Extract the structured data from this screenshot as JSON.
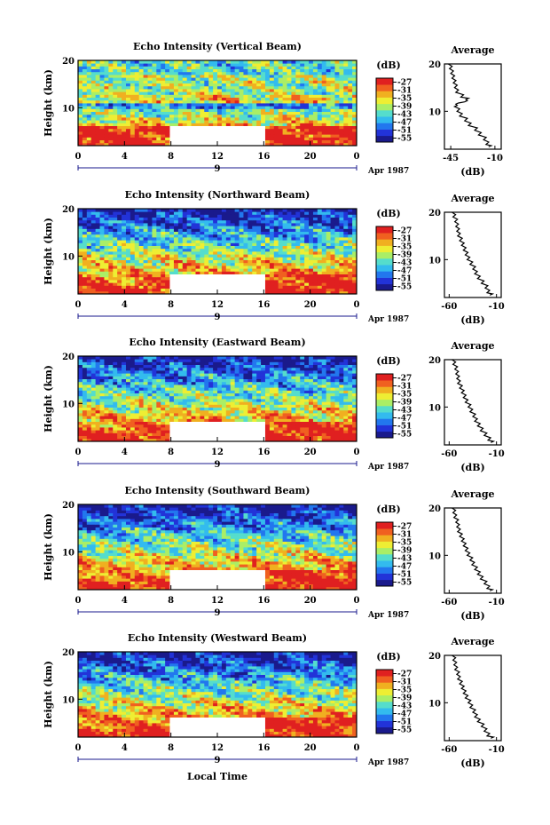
{
  "chart_data": {
    "type": "heatmap",
    "x_axis_label": "Local Time",
    "common": {
      "y_label": "Height (km)",
      "y_ticks": [
        "10",
        "20"
      ],
      "x_ticks": [
        "0",
        "4",
        "8",
        "12",
        "16",
        "20",
        "0"
      ],
      "xlim": [
        0,
        24
      ],
      "ylim": [
        2,
        20
      ],
      "date_day": "9",
      "date_month_year": "Apr 1987",
      "colorbar_unit": "(dB)",
      "colorbar_ticks": [
        "-27",
        "-31",
        "-35",
        "-39",
        "-43",
        "-47",
        "-51",
        "-55"
      ],
      "colorbar_range": [
        -57,
        -25
      ],
      "colorbar_colors": [
        "#1a1a8c",
        "#2233d8",
        "#2277ee",
        "#33bbee",
        "#55ddcc",
        "#aaee66",
        "#eeee33",
        "#f0b020",
        "#f06020",
        "#e02020"
      ],
      "average_title": "Average",
      "average_xlabel": "(dB)",
      "average_ylim": [
        2,
        20
      ],
      "average_yticks": [
        "10",
        "20"
      ],
      "no_data_region": {
        "x_start": 8,
        "x_end": 16,
        "y_start": 2,
        "y_end": 6
      }
    },
    "panels": [
      {
        "title": "Echo Intensity (Vertical Beam)",
        "avg_xlim": [
          -50,
          -5
        ],
        "avg_xticks": [
          "-45",
          "-10"
        ],
        "average_profile": {
          "height": [
            2.5,
            3,
            4,
            5,
            6,
            7,
            8,
            9,
            10,
            11,
            11.5,
            12,
            12.5,
            13,
            14,
            15,
            16,
            17,
            18,
            19,
            20
          ],
          "db": [
            -15,
            -17,
            -19,
            -23,
            -26,
            -31,
            -34,
            -38,
            -40,
            -42,
            -41,
            -34,
            -33,
            -37,
            -41,
            -42,
            -43,
            -44,
            -45,
            -46,
            -47
          ]
        }
      },
      {
        "title": "Echo Intensity (Northward Beam)",
        "avg_xlim": [
          -65,
          -5
        ],
        "avg_xticks": [
          "-60",
          "-10"
        ],
        "average_profile": {
          "height": [
            2.5,
            3,
            4,
            5,
            6,
            7,
            8,
            9,
            10,
            11,
            12,
            13,
            14,
            15,
            16,
            17,
            18,
            19,
            20
          ],
          "db": [
            -17,
            -20,
            -22,
            -26,
            -30,
            -33,
            -35,
            -38,
            -41,
            -43,
            -45,
            -47,
            -49,
            -51,
            -52,
            -53,
            -54,
            -56,
            -57
          ]
        }
      },
      {
        "title": "Echo Intensity (Eastward Beam)",
        "avg_xlim": [
          -65,
          -5
        ],
        "avg_xticks": [
          "-60",
          "-10"
        ],
        "average_profile": {
          "height": [
            2.5,
            3,
            4,
            5,
            6,
            7,
            8,
            9,
            10,
            11,
            12,
            13,
            14,
            15,
            16,
            17,
            18,
            19,
            20
          ],
          "db": [
            -16,
            -19,
            -23,
            -27,
            -30,
            -33,
            -35,
            -38,
            -40,
            -43,
            -45,
            -47,
            -49,
            -51,
            -52,
            -53,
            -54,
            -56,
            -57
          ]
        }
      },
      {
        "title": "Echo Intensity (Southward Beam)",
        "avg_xlim": [
          -65,
          -5
        ],
        "avg_xticks": [
          "-60",
          "-10"
        ],
        "average_profile": {
          "height": [
            2.5,
            3,
            4,
            5,
            6,
            7,
            8,
            9,
            10,
            11,
            12,
            13,
            14,
            15,
            16,
            17,
            18,
            19,
            20
          ],
          "db": [
            -17,
            -20,
            -23,
            -27,
            -30,
            -33,
            -36,
            -38,
            -41,
            -43,
            -45,
            -47,
            -49,
            -51,
            -52,
            -53,
            -55,
            -56,
            -57
          ]
        }
      },
      {
        "title": "Echo Intensity (Westward Beam)",
        "avg_xlim": [
          -65,
          -5
        ],
        "avg_xticks": [
          "-60",
          "-10"
        ],
        "average_profile": {
          "height": [
            2.5,
            3,
            4,
            5,
            6,
            7,
            8,
            9,
            10,
            11,
            12,
            13,
            14,
            15,
            16,
            17,
            18,
            19,
            20
          ],
          "db": [
            -16,
            -20,
            -23,
            -26,
            -30,
            -33,
            -35,
            -38,
            -40,
            -43,
            -45,
            -47,
            -49,
            -51,
            -52,
            -54,
            -55,
            -56,
            -57
          ]
        }
      }
    ]
  }
}
